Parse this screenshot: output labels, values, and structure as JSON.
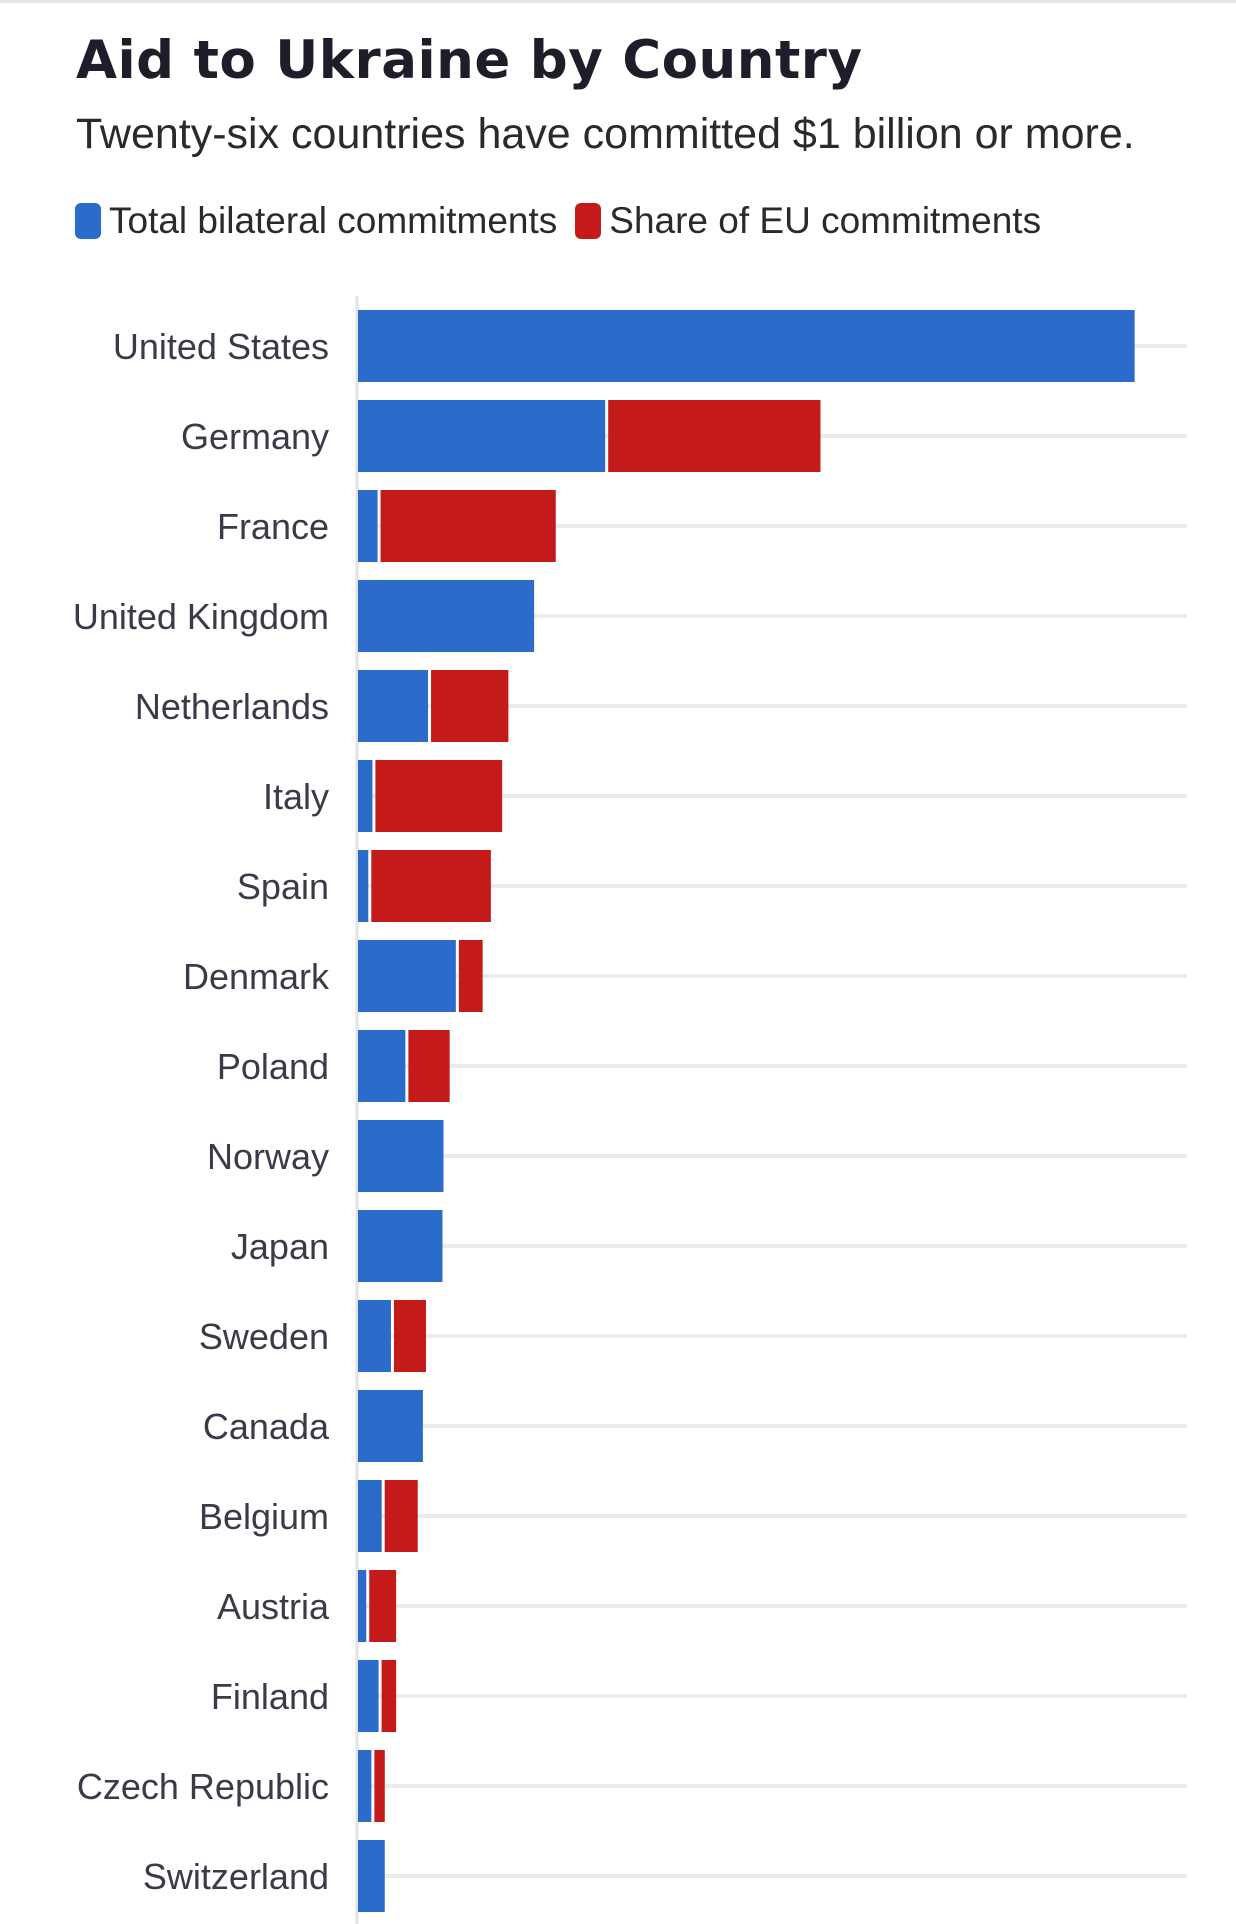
{
  "title": "Aid to Ukraine by Country",
  "subtitle": "Twenty-six countries have committed $1 billion or more.",
  "legend": {
    "items": [
      {
        "label": "Total bilateral commitments",
        "color": "#2b6bc9"
      },
      {
        "label": "Share of EU commitments",
        "color": "#c41a1a"
      }
    ]
  },
  "colors": {
    "bilateral": "#2b6bc9",
    "eu_share": "#c41a1a",
    "gridline": "#ececec",
    "axis": "#e2e2e2"
  },
  "chart_data": {
    "type": "bar",
    "orientation": "horizontal",
    "stacked": true,
    "title": "Aid to Ukraine by Country",
    "subtitle": "Twenty-six countries have committed $1 billion or more.",
    "xlim": [
      0,
      77
    ],
    "grid": true,
    "legend_position": "top-left",
    "categories": [
      "United States",
      "Germany",
      "France",
      "United Kingdom",
      "Netherlands",
      "Italy",
      "Spain",
      "Denmark",
      "Poland",
      "Norway",
      "Japan",
      "Sweden",
      "Canada",
      "Belgium",
      "Austria",
      "Finland",
      "Czech Republic",
      "Switzerland"
    ],
    "series": [
      {
        "name": "Total bilateral commitments",
        "values": [
          75.4,
          24.0,
          1.9,
          17.1,
          6.8,
          1.4,
          1.0,
          9.5,
          4.6,
          8.3,
          8.2,
          3.2,
          6.3,
          2.3,
          0.8,
          2.0,
          1.3,
          2.6
        ]
      },
      {
        "name": "Share of EU commitments",
        "values": [
          0,
          20.9,
          17.3,
          0,
          7.8,
          12.6,
          11.9,
          2.6,
          4.3,
          0,
          0,
          3.4,
          0,
          3.5,
          2.9,
          1.7,
          1.3,
          0
        ]
      }
    ]
  }
}
